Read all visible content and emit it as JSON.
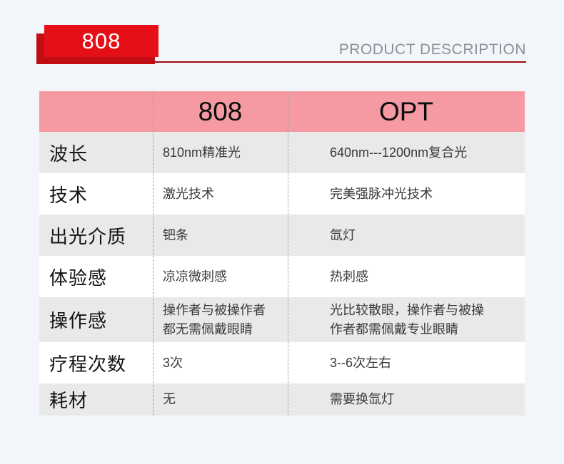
{
  "page": {
    "badge_label": "808",
    "section_title": "PRODUCT DESCRIPTION"
  },
  "colors": {
    "background": "#f2f6fb",
    "badge_red": "#e60f17",
    "badge_shadow_red": "#c10d14",
    "underline_red": "#a30c13",
    "header_pink": "#f59aa3",
    "row_gray": "#e9e9e9",
    "row_white": "#ffffff",
    "title_gray": "#8b9196",
    "text_black": "#141414"
  },
  "chart_data": {
    "type": "table",
    "columns": [
      "",
      "808",
      "OPT"
    ],
    "rows": [
      [
        "波长",
        "810nm精准光",
        "640nm---1200nm复合光"
      ],
      [
        "技术",
        "激光技术",
        "完美强脉冲光技术"
      ],
      [
        "出光介质",
        "钯条",
        "氙灯"
      ],
      [
        "体验感",
        "凉凉微刺感",
        "热刺感"
      ],
      [
        "操作感",
        "操作者与被操作者都无需佩戴眼睛",
        "光比较散眼，操作者与被操作者都需佩戴专业眼睛"
      ],
      [
        "疗程次数",
        "3次",
        "3--6次左右"
      ],
      [
        "耗材",
        "无",
        "需要换氙灯"
      ]
    ]
  },
  "table": {
    "col_808": "808",
    "col_opt": "OPT",
    "rows": [
      {
        "label": "波长",
        "v808": "810nm精准光",
        "vopt": "640nm---1200nm复合光"
      },
      {
        "label": "技术",
        "v808": "激光技术",
        "vopt": "完美强脉冲光技术"
      },
      {
        "label": "出光介质",
        "v808": "钯条",
        "vopt": "氙灯"
      },
      {
        "label": "体验感",
        "v808": "凉凉微刺感",
        "vopt": "热刺感"
      },
      {
        "label": "操作感",
        "v808": "操作者与被操作者\n都无需佩戴眼睛",
        "vopt": "光比较散眼，操作者与被操\n作者都需佩戴专业眼睛"
      },
      {
        "label": "疗程次数",
        "v808": "3次",
        "vopt": "3--6次左右"
      },
      {
        "label": "耗材",
        "v808": "无",
        "vopt": "需要换氙灯"
      }
    ]
  }
}
